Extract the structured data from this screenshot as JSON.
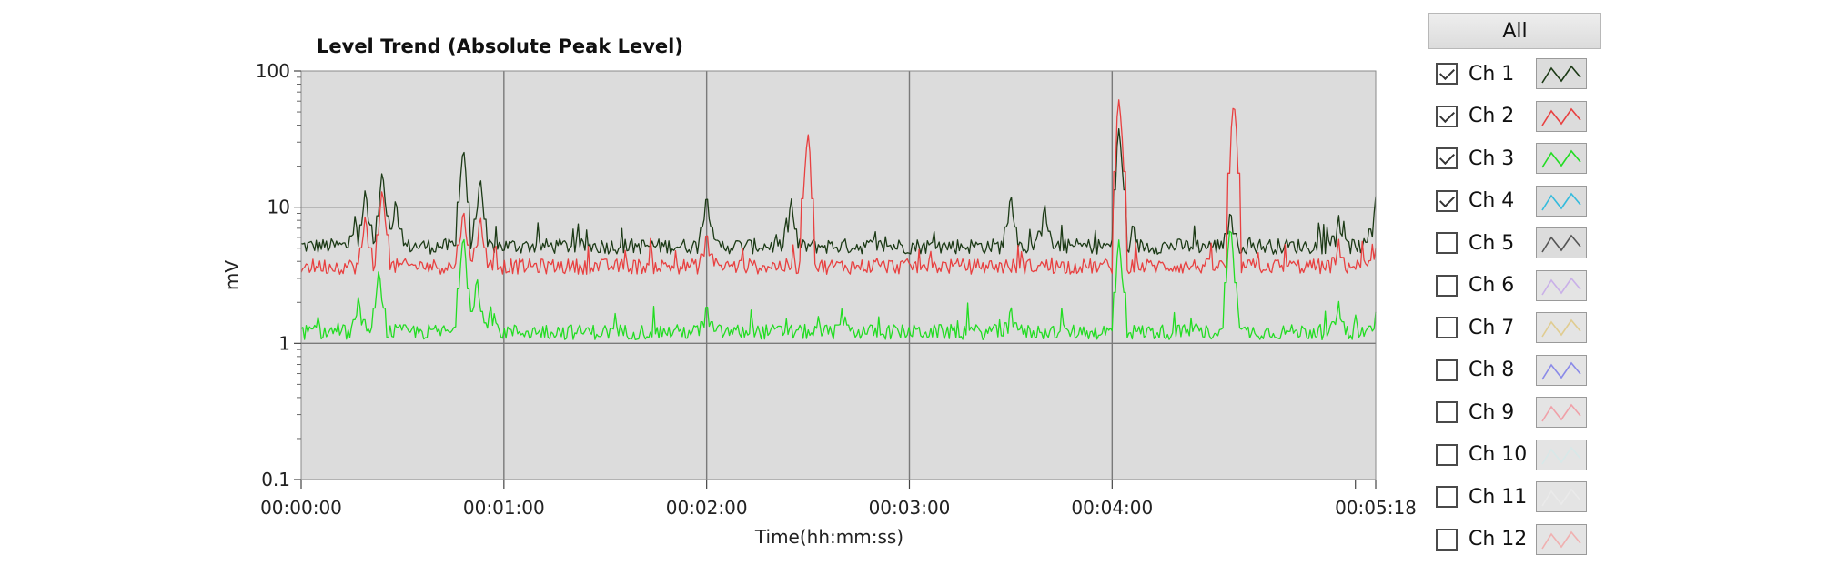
{
  "chart_data": {
    "type": "line",
    "title": "Level Trend (Absolute Peak Level)",
    "xlabel": "Time(hh:mm:ss)",
    "ylabel": "mV",
    "y_scale": "log",
    "ylim": [
      0.1,
      100
    ],
    "y_ticks": [
      "100",
      "10",
      "1",
      "0.1"
    ],
    "xlim_seconds": [
      0,
      318
    ],
    "x_tick_seconds": [
      0,
      60,
      120,
      180,
      240,
      318
    ],
    "x_ticks": [
      "00:00:00",
      "00:01:00",
      "00:02:00",
      "00:03:00",
      "00:04:00",
      "00:05:18"
    ],
    "grid": true,
    "plot_background": "#dcdcdc",
    "series": [
      {
        "name": "Ch 1",
        "color": "#1c3a16",
        "baseline": 5.2,
        "spikes": [
          [
            16,
            9
          ],
          [
            19,
            14
          ],
          [
            24,
            19
          ],
          [
            28,
            12
          ],
          [
            48,
            28
          ],
          [
            53,
            17
          ],
          [
            120,
            13
          ],
          [
            145,
            12
          ],
          [
            210,
            13
          ],
          [
            220,
            11
          ],
          [
            242,
            38
          ],
          [
            275,
            10
          ],
          [
            307,
            9
          ],
          [
            318,
            12
          ]
        ]
      },
      {
        "name": "Ch 2",
        "color": "#e84040",
        "baseline": 3.7,
        "spikes": [
          [
            19,
            9
          ],
          [
            24,
            14
          ],
          [
            48,
            10
          ],
          [
            53,
            9
          ],
          [
            120,
            7
          ],
          [
            150,
            35
          ],
          [
            242,
            62
          ],
          [
            276,
            60
          ],
          [
            307,
            6
          ],
          [
            318,
            5
          ]
        ]
      },
      {
        "name": "Ch 3",
        "color": "#22dd22",
        "baseline": 1.22,
        "spikes": [
          [
            17,
            2.3
          ],
          [
            23,
            3.6
          ],
          [
            48,
            6.4
          ],
          [
            52,
            3.2
          ],
          [
            56,
            2
          ],
          [
            120,
            2.1
          ],
          [
            160,
            1.8
          ],
          [
            210,
            2
          ],
          [
            242,
            5.8
          ],
          [
            275,
            7.5
          ],
          [
            307,
            2.1
          ],
          [
            318,
            1.7
          ]
        ]
      },
      {
        "name": "Ch 4",
        "color": "#33bbdd"
      }
    ]
  },
  "legend": {
    "all_label": "All",
    "channels": [
      {
        "label": "Ch 1",
        "checked": true,
        "color": "#1c3a16",
        "dim": false
      },
      {
        "label": "Ch 2",
        "checked": true,
        "color": "#e84040",
        "dim": false
      },
      {
        "label": "Ch 3",
        "checked": true,
        "color": "#22dd22",
        "dim": false
      },
      {
        "label": "Ch 4",
        "checked": true,
        "color": "#33bbdd",
        "dim": false
      },
      {
        "label": "Ch 5",
        "checked": false,
        "color": "#555555",
        "dim": false
      },
      {
        "label": "Ch 6",
        "checked": false,
        "color": "#c9b0e8",
        "dim": true
      },
      {
        "label": "Ch 7",
        "checked": false,
        "color": "#e0cc90",
        "dim": true
      },
      {
        "label": "Ch 8",
        "checked": false,
        "color": "#8a8ae8",
        "dim": true
      },
      {
        "label": "Ch 9",
        "checked": false,
        "color": "#f0a0a8",
        "dim": true
      },
      {
        "label": "Ch 10",
        "checked": false,
        "color": "#d8e8e8",
        "dim": true
      },
      {
        "label": "Ch 11",
        "checked": false,
        "color": "#eaeaea",
        "dim": true
      },
      {
        "label": "Ch 12",
        "checked": false,
        "color": "#f0b0b0",
        "dim": true
      }
    ]
  }
}
